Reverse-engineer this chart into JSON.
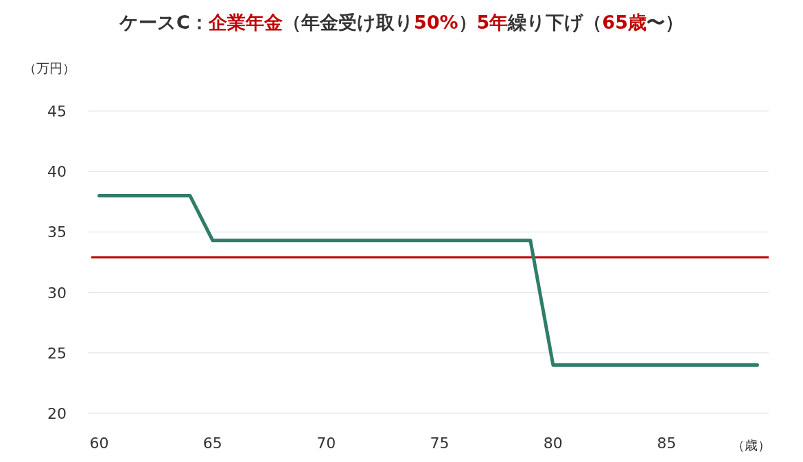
{
  "chart_data": {
    "type": "line",
    "title": "ケースC：**企業年金**（年金受け取り**50%**）**5年**繰り下げ（**65歳**〜）",
    "ylabel": "（万円）",
    "xlabel": "（歳）",
    "x": [
      60,
      64,
      65,
      79,
      80,
      89
    ],
    "series": [
      {
        "color": "#2e7d68",
        "values": [
          38,
          38,
          34.3,
          34.3,
          24,
          24
        ]
      }
    ],
    "xlim": [
      59.5,
      89.5
    ],
    "xticks": [
      60,
      65,
      70,
      75,
      80,
      85
    ],
    "ylim": [
      20,
      45
    ],
    "yticks": [
      20,
      25,
      30,
      35,
      40,
      45
    ],
    "ref_lines": [
      {
        "axis": "y",
        "value": 32.9,
        "color": "#c00000"
      }
    ],
    "grid": "y",
    "marker": "none",
    "line_style": "solid"
  }
}
